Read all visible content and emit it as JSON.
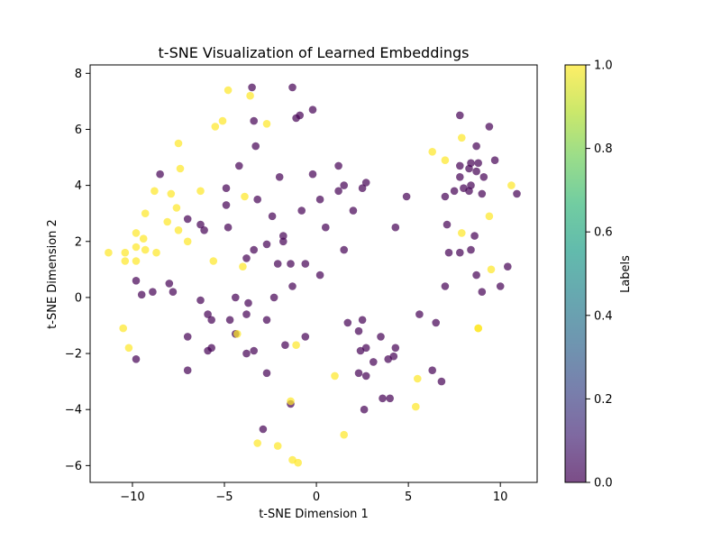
{
  "chart_data": {
    "type": "scatter",
    "title": "t-SNE Visualization of Learned Embeddings",
    "xlabel": "t-SNE Dimension 1",
    "ylabel": "t-SNE Dimension 2",
    "xlim": [
      -12.3,
      12.0
    ],
    "ylim": [
      -6.6,
      8.3
    ],
    "xticks": [
      -10,
      -5,
      0,
      5,
      10
    ],
    "xtick_labels": [
      "−10",
      "−5",
      "0",
      "5",
      "10"
    ],
    "yticks": [
      -6,
      -4,
      -2,
      0,
      2,
      4,
      6,
      8
    ],
    "ytick_labels": [
      "−6",
      "−4",
      "−2",
      "0",
      "2",
      "4",
      "6",
      "8"
    ],
    "grid": false,
    "colormap": "viridis",
    "alpha": 0.7,
    "colorbar": {
      "label": "Labels",
      "range": [
        0.0,
        1.0
      ],
      "ticks": [
        0.0,
        0.2,
        0.4,
        0.6,
        0.8,
        1.0
      ],
      "tick_labels": [
        "0.0",
        "0.2",
        "0.4",
        "0.6",
        "0.8",
        "1.0"
      ],
      "gradient": [
        "#440154",
        "#482878",
        "#3e4989",
        "#31688e",
        "#26828e",
        "#1f9e89",
        "#35b779",
        "#6ece58",
        "#b5de2b",
        "#fde725"
      ]
    },
    "series": [
      {
        "label_value": 0,
        "color": "#440154",
        "points": [
          [
            -3.5,
            7.5
          ],
          [
            -1.3,
            7.5
          ],
          [
            -0.2,
            6.7
          ],
          [
            -0.9,
            6.5
          ],
          [
            -1.1,
            6.4
          ],
          [
            -3.4,
            6.3
          ],
          [
            -3.3,
            5.4
          ],
          [
            -4.2,
            4.7
          ],
          [
            -8.5,
            4.4
          ],
          [
            -0.2,
            4.4
          ],
          [
            -2.0,
            4.3
          ],
          [
            1.2,
            4.7
          ],
          [
            1.5,
            4.0
          ],
          [
            2.7,
            4.1
          ],
          [
            2.5,
            3.9
          ],
          [
            1.2,
            3.8
          ],
          [
            -4.9,
            3.9
          ],
          [
            -3.2,
            3.5
          ],
          [
            0.2,
            3.5
          ],
          [
            -4.9,
            3.3
          ],
          [
            -0.8,
            3.1
          ],
          [
            2.0,
            3.1
          ],
          [
            -7.0,
            2.8
          ],
          [
            -2.4,
            2.9
          ],
          [
            -6.3,
            2.6
          ],
          [
            -4.8,
            2.5
          ],
          [
            -6.1,
            2.4
          ],
          [
            0.5,
            2.5
          ],
          [
            -1.8,
            2.2
          ],
          [
            -1.8,
            2.0
          ],
          [
            -2.7,
            1.9
          ],
          [
            -3.4,
            1.7
          ],
          [
            -3.8,
            1.4
          ],
          [
            1.5,
            1.7
          ],
          [
            -2.1,
            1.2
          ],
          [
            -1.4,
            1.2
          ],
          [
            -0.6,
            1.2
          ],
          [
            0.2,
            0.8
          ],
          [
            -9.8,
            0.6
          ],
          [
            -8.0,
            0.5
          ],
          [
            -1.3,
            0.4
          ],
          [
            -8.9,
            0.2
          ],
          [
            -7.8,
            0.2
          ],
          [
            -9.5,
            0.1
          ],
          [
            -4.4,
            0.0
          ],
          [
            -2.3,
            0.0
          ],
          [
            -6.3,
            -0.1
          ],
          [
            -3.7,
            -0.2
          ],
          [
            -5.9,
            -0.6
          ],
          [
            -3.8,
            -0.6
          ],
          [
            -5.7,
            -0.8
          ],
          [
            -4.7,
            -0.8
          ],
          [
            -2.7,
            -0.8
          ],
          [
            -4.4,
            -1.3
          ],
          [
            -0.6,
            -1.4
          ],
          [
            -7.0,
            -1.4
          ],
          [
            -5.9,
            -1.9
          ],
          [
            -5.7,
            -1.8
          ],
          [
            -3.4,
            -1.9
          ],
          [
            -3.8,
            -2.0
          ],
          [
            -1.7,
            -1.7
          ],
          [
            -9.8,
            -2.2
          ],
          [
            -7.0,
            -2.6
          ],
          [
            -2.7,
            -2.7
          ],
          [
            -1.4,
            -3.8
          ],
          [
            -2.9,
            -4.7
          ],
          [
            1.7,
            -0.9
          ],
          [
            2.5,
            -0.8
          ],
          [
            2.3,
            -1.2
          ],
          [
            3.5,
            -1.4
          ],
          [
            2.7,
            -1.8
          ],
          [
            2.4,
            -1.9
          ],
          [
            4.3,
            -1.8
          ],
          [
            4.2,
            -2.1
          ],
          [
            3.9,
            -2.2
          ],
          [
            3.1,
            -2.3
          ],
          [
            2.3,
            -2.7
          ],
          [
            2.7,
            -2.8
          ],
          [
            3.6,
            -3.6
          ],
          [
            4.0,
            -3.6
          ],
          [
            2.6,
            -4.0
          ],
          [
            5.6,
            -0.6
          ],
          [
            6.5,
            -0.9
          ],
          [
            6.3,
            -2.6
          ],
          [
            6.8,
            -3.0
          ],
          [
            4.3,
            2.5
          ],
          [
            4.9,
            3.6
          ],
          [
            7.8,
            6.5
          ],
          [
            9.4,
            6.1
          ],
          [
            8.7,
            5.4
          ],
          [
            9.7,
            4.9
          ],
          [
            7.8,
            4.7
          ],
          [
            8.4,
            4.8
          ],
          [
            8.8,
            4.8
          ],
          [
            8.3,
            4.6
          ],
          [
            8.7,
            4.5
          ],
          [
            7.8,
            4.3
          ],
          [
            9.1,
            4.3
          ],
          [
            8.4,
            4.0
          ],
          [
            7.5,
            3.8
          ],
          [
            8.3,
            3.8
          ],
          [
            7.0,
            3.6
          ],
          [
            8.0,
            3.9
          ],
          [
            9.0,
            3.7
          ],
          [
            10.9,
            3.7
          ],
          [
            7.1,
            2.6
          ],
          [
            8.6,
            2.2
          ],
          [
            7.2,
            1.6
          ],
          [
            7.8,
            1.6
          ],
          [
            8.4,
            1.7
          ],
          [
            10.4,
            1.1
          ],
          [
            8.7,
            0.8
          ],
          [
            7.0,
            0.4
          ],
          [
            10.0,
            0.4
          ],
          [
            9.0,
            0.2
          ]
        ]
      },
      {
        "label_value": 1,
        "color": "#fde725",
        "points": [
          [
            -4.8,
            7.4
          ],
          [
            -3.6,
            7.2
          ],
          [
            -5.1,
            6.3
          ],
          [
            -2.7,
            6.2
          ],
          [
            -5.5,
            6.1
          ],
          [
            -7.5,
            5.5
          ],
          [
            -7.4,
            4.6
          ],
          [
            -8.8,
            3.8
          ],
          [
            -7.9,
            3.7
          ],
          [
            -6.3,
            3.8
          ],
          [
            -3.9,
            3.6
          ],
          [
            -7.6,
            3.2
          ],
          [
            -9.3,
            3.0
          ],
          [
            -8.1,
            2.7
          ],
          [
            -9.8,
            2.3
          ],
          [
            -9.4,
            2.1
          ],
          [
            -7.5,
            2.4
          ],
          [
            -7.0,
            2.0
          ],
          [
            -9.8,
            1.8
          ],
          [
            -9.3,
            1.7
          ],
          [
            -11.3,
            1.6
          ],
          [
            -10.4,
            1.6
          ],
          [
            -8.7,
            1.6
          ],
          [
            -10.4,
            1.3
          ],
          [
            -9.8,
            1.3
          ],
          [
            -5.6,
            1.3
          ],
          [
            -4.0,
            1.1
          ],
          [
            -10.5,
            -1.1
          ],
          [
            -10.2,
            -1.8
          ],
          [
            -4.3,
            -1.3
          ],
          [
            -1.1,
            -1.7
          ],
          [
            1.0,
            -2.8
          ],
          [
            -3.2,
            -5.2
          ],
          [
            -2.1,
            -5.3
          ],
          [
            -1.4,
            -3.7
          ],
          [
            -1.3,
            -5.8
          ],
          [
            -1.0,
            -5.9
          ],
          [
            1.5,
            -4.9
          ],
          [
            5.4,
            -3.9
          ],
          [
            5.5,
            -2.9
          ],
          [
            6.3,
            5.2
          ],
          [
            7.0,
            4.9
          ],
          [
            7.9,
            5.7
          ],
          [
            10.6,
            4.0
          ],
          [
            9.4,
            2.9
          ],
          [
            7.9,
            2.3
          ],
          [
            9.5,
            1.0
          ],
          [
            8.8,
            -1.1
          ],
          [
            8.8,
            -1.1
          ]
        ]
      }
    ]
  }
}
